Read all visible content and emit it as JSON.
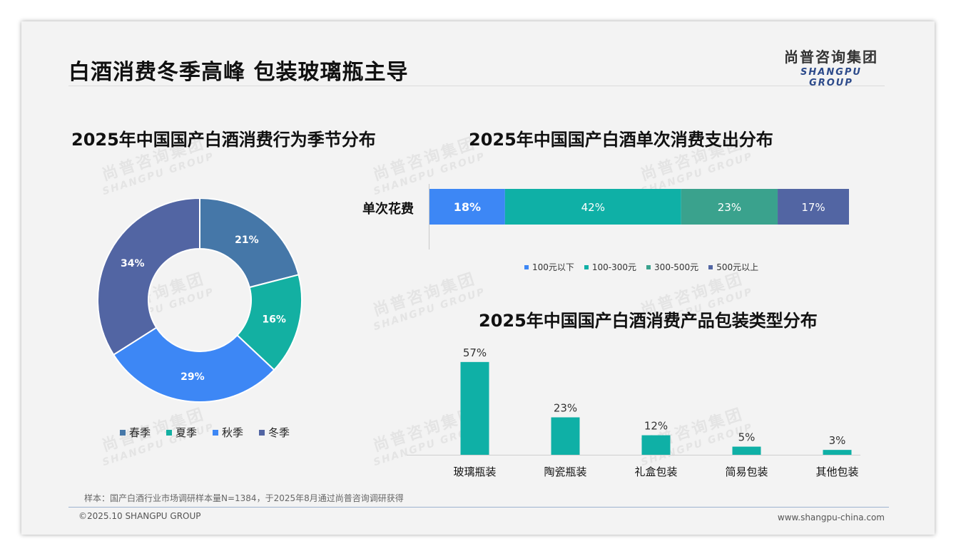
{
  "header": {
    "title": "白酒消费冬季高峰 包装玻璃瓶主导",
    "logo_cn": "尚普咨询集团",
    "logo_en": "SHANGPU GROUP"
  },
  "watermark": {
    "cn": "尚普咨询集团",
    "en": "SHANGPU GROUP"
  },
  "colors": {
    "spring": "#4577a8",
    "summer": "#13b0a2",
    "autumn": "#3d87f5",
    "winter": "#5265a3",
    "b_100": "#3d87f5",
    "b_300": "#0fb0a6",
    "b_500": "#3aa28d",
    "b_500p": "#5265a3",
    "pack": "#0fb0a6"
  },
  "chart_data": [
    {
      "type": "pie",
      "donut": true,
      "title": "2025年中国国产白酒消费行为季节分布",
      "categories": [
        "春季",
        "夏季",
        "秋季",
        "冬季"
      ],
      "values": [
        21,
        16,
        29,
        34
      ],
      "data_labels": [
        "21%",
        "16%",
        "29%",
        "34%"
      ],
      "legend": "bottom"
    },
    {
      "type": "bar",
      "orientation": "horizontal",
      "stacked": true,
      "title": "2025年中国国产白酒单次消费支出分布",
      "categories": [
        "单次花费"
      ],
      "series": [
        {
          "name": "100元以下",
          "values": [
            18
          ],
          "label": "18%"
        },
        {
          "name": "100-300元",
          "values": [
            42
          ],
          "label": "42%"
        },
        {
          "name": "300-500元",
          "values": [
            23
          ],
          "label": "23%"
        },
        {
          "name": "500元以上",
          "values": [
            17
          ],
          "label": "17%"
        }
      ],
      "xlim": [
        0,
        100
      ],
      "legend": "bottom"
    },
    {
      "type": "bar",
      "title": "2025年中国国产白酒消费产品包装类型分布",
      "categories": [
        "玻璃瓶装",
        "陶瓷瓶装",
        "礼盒包装",
        "简易包装",
        "其他包装"
      ],
      "values": [
        57,
        23,
        12,
        5,
        3
      ],
      "data_labels": [
        "57%",
        "23%",
        "12%",
        "5%",
        "3%"
      ],
      "ylim": [
        0,
        60
      ]
    }
  ],
  "footer": {
    "note": "样本：国产白酒行业市场调研样本量N=1384，于2025年8月通过尚普咨询调研获得",
    "copyright": "©2025.10 SHANGPU GROUP",
    "website": "www.shangpu-china.com"
  }
}
